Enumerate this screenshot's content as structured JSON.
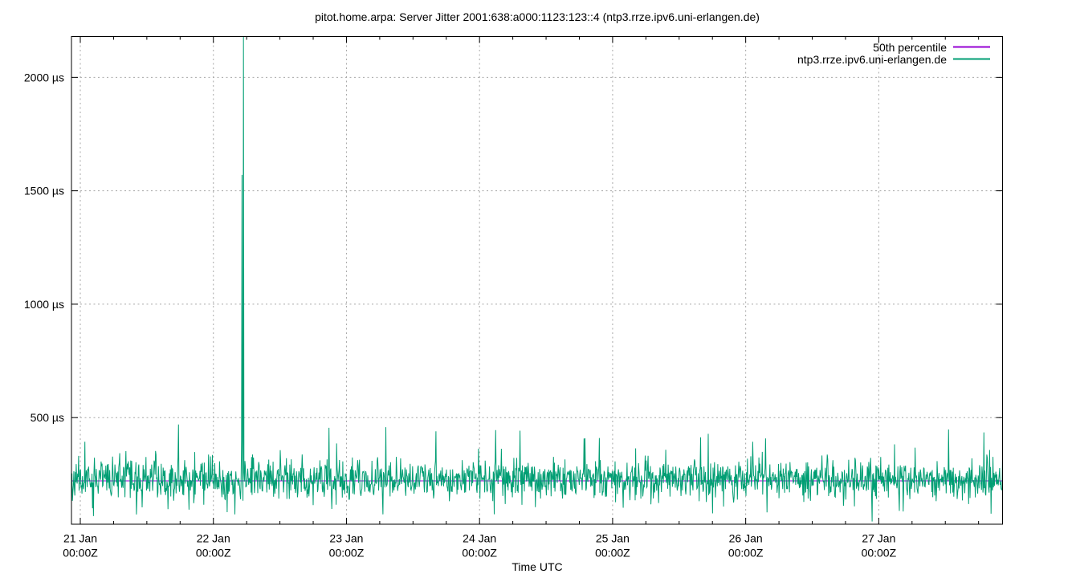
{
  "chart_data": {
    "type": "line",
    "title": "pitot.home.arpa: Server Jitter 2001:638:a000:1123:123::4 (ntp3.rrze.ipv6.uni-erlangen.de)",
    "xlabel": "Time UTC",
    "ylabel": "",
    "y_unit": "µs",
    "ylim": [
      30,
      2180
    ],
    "xlim_days_from_21jan": [
      -0.0664,
      6.93
    ],
    "grid": true,
    "x_minor_tick_hours": 6,
    "x_ticks": [
      {
        "day": "21 Jan",
        "time": "00:00Z",
        "offset_days": 0
      },
      {
        "day": "22 Jan",
        "time": "00:00Z",
        "offset_days": 1
      },
      {
        "day": "23 Jan",
        "time": "00:00Z",
        "offset_days": 2
      },
      {
        "day": "24 Jan",
        "time": "00:00Z",
        "offset_days": 3
      },
      {
        "day": "25 Jan",
        "time": "00:00Z",
        "offset_days": 4
      },
      {
        "day": "26 Jan",
        "time": "00:00Z",
        "offset_days": 5
      },
      {
        "day": "27 Jan",
        "time": "00:00Z",
        "offset_days": 6
      }
    ],
    "y_ticks": [
      {
        "label": "500 µs",
        "value": 500
      },
      {
        "label": "1000 µs",
        "value": 1000
      },
      {
        "label": "1500 µs",
        "value": 1500
      },
      {
        "label": "2000 µs",
        "value": 2000
      }
    ],
    "legend": {
      "position": "top-right-inside",
      "entries": [
        {
          "label": "50th percentile",
          "color": "#9400d3"
        },
        {
          "label": "ntp3.rrze.ipv6.uni-erlangen.de",
          "color": "#009e73"
        }
      ]
    },
    "series": [
      {
        "name": "50th percentile",
        "type": "constant",
        "color": "#9400d3",
        "value_us": 221
      },
      {
        "name": "ntp3.rrze.ipv6.uni-erlangen.de",
        "type": "noisy_line",
        "color": "#009e73",
        "baseline_us": 228,
        "stddev_us": 43,
        "observed_band_us": [
          110,
          380
        ],
        "clamp_us": [
          58,
          470
        ],
        "sample_count": 1950,
        "seed": 11,
        "tail_up_prob": 0.004,
        "tail_mid_prob": 0.012,
        "tail_down_prob": 0.016,
        "notable_events": [
          {
            "offset_days": 0.736,
            "value_us": 470,
            "desc": "spike ~470 µs late 21 Jan"
          },
          {
            "offset_days": 1.216,
            "value_us": 1570,
            "desc": "spike ~1570 µs early 22 Jan"
          },
          {
            "offset_days": 1.226,
            "value_us": 2180,
            "desc": "large spike clipped at plot top (~2180+ µs)"
          },
          {
            "offset_days": 1.87,
            "value_us": 455,
            "desc": "spike"
          },
          {
            "offset_days": 5.95,
            "value_us": 42,
            "desc": "deep dip touching axis"
          },
          {
            "offset_days": 6.79,
            "value_us": 435,
            "desc": "spike"
          }
        ]
      }
    ],
    "colors": {
      "grid": "#a8a8a8",
      "border": "#000000",
      "text": "#000000",
      "background": "#ffffff"
    }
  }
}
